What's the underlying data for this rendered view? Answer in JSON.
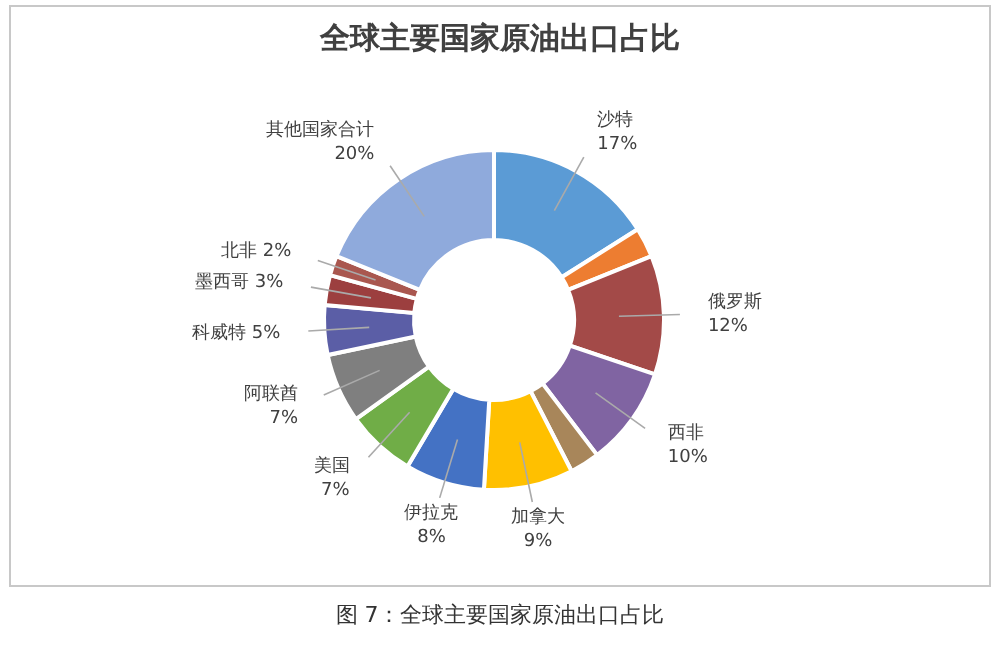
{
  "chart_data": {
    "type": "donut",
    "title": "全球主要国家原油出口占比",
    "categories": [
      "沙特",
      null,
      "俄罗斯",
      "西非",
      null,
      "加拿大",
      "伊拉克",
      "美国",
      "阿联酋",
      "科威特",
      "墨西哥",
      "北非",
      "其他国家合计"
    ],
    "values": [
      17,
      3,
      12,
      10,
      3,
      9,
      8,
      7,
      7,
      5,
      3,
      2,
      20
    ],
    "value_labels": [
      "17%",
      null,
      "12%",
      "10%",
      null,
      "9%",
      "8%",
      "7%",
      "7%",
      "5%",
      "3%",
      "2%",
      "20%"
    ],
    "colors": [
      "#5b9bd5",
      "#ed7d31",
      "#a34a48",
      "#8064a2",
      "#a8865a",
      "#ffc000",
      "#4472c4",
      "#70ad47",
      "#7f7f7f",
      "#5b5ea6",
      "#9c3f3f",
      "#a9574f",
      "#8faadc"
    ],
    "legend": false,
    "annotations": [
      "图 7：全球主要国家原油出口占比"
    ]
  }
}
